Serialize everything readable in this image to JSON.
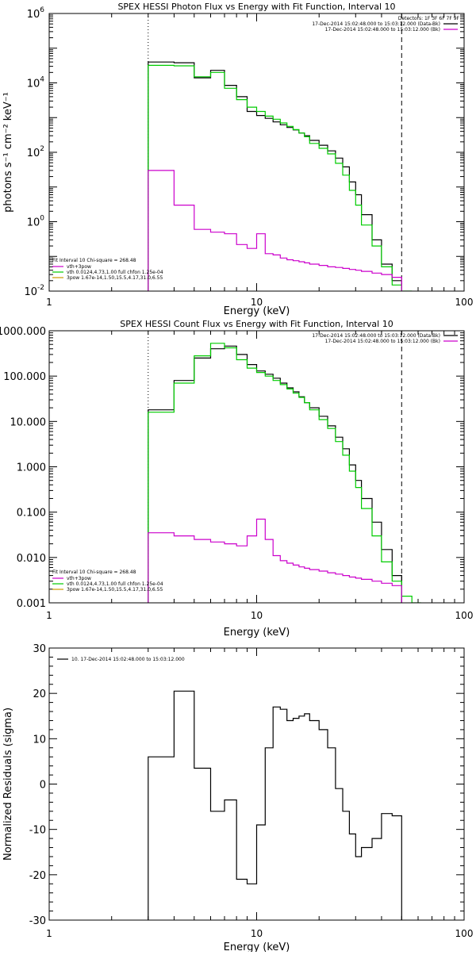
{
  "chart_data": [
    {
      "type": "line",
      "title": "SPEX HESSI Photon Flux vs Energy with Fit Function, Interval 10",
      "xlabel": "Energy (keV)",
      "ylabel": "photons s⁻¹ cm⁻² keV⁻¹",
      "xscale": "log",
      "yscale": "log",
      "xlim": [
        1,
        100
      ],
      "ylim": [
        0.01,
        1000000
      ],
      "x_ticks": [
        {
          "value": 1,
          "label": "1"
        },
        {
          "value": 10,
          "label": "10"
        },
        {
          "value": 100,
          "label": "100"
        }
      ],
      "y_ticks": [
        {
          "value": 0.01,
          "base": "10",
          "exp": "-2"
        },
        {
          "value": 1,
          "base": "10",
          "exp": "0"
        },
        {
          "value": 100,
          "base": "10",
          "exp": "2"
        },
        {
          "value": 10000,
          "base": "10",
          "exp": "4"
        },
        {
          "value": 1000000,
          "base": "10",
          "exp": "6"
        }
      ],
      "vlines": [
        {
          "x": 3,
          "style": "dotted"
        },
        {
          "x": 50,
          "style": "dashed"
        }
      ],
      "legend_top_right": {
        "header": "Detectors: 1F 3F 6F 7F 9F",
        "items": [
          {
            "label": "17-Dec-2014 15:02:48.000 to 15:03:12.000 (Data-Bk)",
            "color": "#000000"
          },
          {
            "label": "17-Dec-2014 15:02:48.000 to 15:03:12.000 (Bk)",
            "color": "#cc00cc"
          }
        ]
      },
      "legend_bottom_left": {
        "header": "Fit Interval 10   Chi-square = 268.48",
        "items": [
          {
            "label": "vth+3pow",
            "color": "#cc00cc"
          },
          {
            "label": "vth 0.0124,4.73,1.00  full chfon 1.25e-04",
            "color": "#00cc00"
          },
          {
            "label": "3pow 1.67e-14,1.50,15.5,4.17,31.0,6.55",
            "color": "#cc9900"
          }
        ]
      },
      "series": [
        {
          "color": "#000000",
          "edges": [
            3,
            4,
            5,
            6,
            7,
            8,
            9,
            10,
            11,
            12,
            13,
            14,
            15,
            16,
            17,
            18,
            20,
            22,
            24,
            26,
            28,
            30,
            32,
            36,
            40,
            45,
            50
          ],
          "values": [
            40000,
            38000,
            14000,
            23000,
            8500,
            4000,
            1500,
            1150,
            950,
            750,
            620,
            520,
            440,
            360,
            300,
            220,
            160,
            110,
            68,
            38,
            14,
            6,
            1.6,
            0.3,
            0.06,
            0.02
          ]
        },
        {
          "color": "#00cc00",
          "edges": [
            3,
            4,
            5,
            6,
            7,
            8,
            9,
            10,
            11,
            12,
            13,
            14,
            15,
            16,
            17,
            18,
            20,
            22,
            24,
            26,
            28,
            30,
            32,
            36,
            40,
            45,
            50,
            56
          ],
          "values": [
            32000,
            31000,
            15000,
            20000,
            7000,
            3300,
            2000,
            1500,
            1100,
            900,
            700,
            560,
            450,
            360,
            280,
            180,
            130,
            90,
            48,
            22,
            8,
            3,
            0.8,
            0.2,
            0.05,
            0.015,
            0.006
          ]
        },
        {
          "color": "#cc00cc",
          "edges": [
            3,
            4,
            5,
            6,
            7,
            8,
            9,
            10,
            11,
            12,
            13,
            14,
            15,
            16,
            17,
            18,
            20,
            22,
            24,
            26,
            28,
            30,
            32,
            36,
            40,
            45,
            50
          ],
          "values": [
            30,
            3,
            0.6,
            0.5,
            0.45,
            0.22,
            0.17,
            0.45,
            0.12,
            0.11,
            0.09,
            0.08,
            0.075,
            0.07,
            0.065,
            0.06,
            0.055,
            0.05,
            0.048,
            0.045,
            0.042,
            0.04,
            0.037,
            0.033,
            0.03,
            0.025
          ]
        }
      ]
    },
    {
      "type": "line",
      "title": "SPEX HESSI Count Flux vs Energy with Fit Function, Interval 10",
      "xlabel": "Energy (keV)",
      "ylabel": "",
      "xscale": "log",
      "yscale": "log",
      "xlim": [
        1,
        100
      ],
      "ylim": [
        0.001,
        1000
      ],
      "x_ticks": [
        {
          "value": 1,
          "label": "1"
        },
        {
          "value": 10,
          "label": "10"
        },
        {
          "value": 100,
          "label": "100"
        }
      ],
      "y_ticks": [
        {
          "value": 0.001,
          "label": "0.001"
        },
        {
          "value": 0.01,
          "label": "0.010"
        },
        {
          "value": 0.1,
          "label": "0.100"
        },
        {
          "value": 1,
          "label": "1.000"
        },
        {
          "value": 10,
          "label": "10.000"
        },
        {
          "value": 100,
          "label": "100.000"
        },
        {
          "value": 1000,
          "label": "1000.000"
        }
      ],
      "vlines": [
        {
          "x": 3,
          "style": "dotted"
        },
        {
          "x": 50,
          "style": "dashed"
        }
      ],
      "legend_top_right": {
        "header": "",
        "items": [
          {
            "label": "17-Dec-2014 15:02:48.000 to 15:03:12.000 (Data-Bk)",
            "color": "#000000"
          },
          {
            "label": "17-Dec-2014 15:02:48.000 to 15:03:12.000 (Bk)",
            "color": "#cc00cc"
          }
        ]
      },
      "legend_bottom_left": {
        "header": "Fit Interval 10   Chi-square = 268.48",
        "items": [
          {
            "label": "vth+3pow",
            "color": "#cc00cc"
          },
          {
            "label": "vth 0.0124,4.73,1.00  full chfon 1.25e-04",
            "color": "#00cc00"
          },
          {
            "label": "3pow 1.67e-14,1.50,15.5,4.17,31.0,6.55",
            "color": "#cc9900"
          }
        ]
      },
      "series": [
        {
          "color": "#000000",
          "edges": [
            3,
            4,
            5,
            6,
            7,
            8,
            9,
            10,
            11,
            12,
            13,
            14,
            15,
            16,
            17,
            18,
            20,
            22,
            24,
            26,
            28,
            30,
            32,
            36,
            40,
            45,
            50
          ],
          "values": [
            18,
            80,
            250,
            400,
            460,
            300,
            180,
            130,
            110,
            90,
            70,
            55,
            45,
            35,
            26,
            20,
            13,
            8,
            4.5,
            2.5,
            1.1,
            0.5,
            0.2,
            0.06,
            0.015,
            0.004
          ]
        },
        {
          "color": "#00cc00",
          "edges": [
            3,
            4,
            5,
            6,
            7,
            8,
            9,
            10,
            11,
            12,
            13,
            14,
            15,
            16,
            17,
            18,
            20,
            22,
            24,
            26,
            28,
            30,
            32,
            36,
            40,
            45,
            50,
            56,
            62
          ],
          "values": [
            16,
            70,
            280,
            530,
            420,
            230,
            150,
            120,
            100,
            80,
            65,
            52,
            42,
            34,
            26,
            18,
            11,
            7,
            3.6,
            1.8,
            0.8,
            0.35,
            0.12,
            0.03,
            0.008,
            0.003,
            0.0014,
            0.0008
          ]
        },
        {
          "color": "#cc00cc",
          "edges": [
            3,
            4,
            5,
            6,
            7,
            8,
            9,
            10,
            11,
            12,
            13,
            14,
            15,
            16,
            17,
            18,
            20,
            22,
            24,
            26,
            28,
            30,
            32,
            36,
            40,
            45,
            50
          ],
          "values": [
            0.035,
            0.03,
            0.025,
            0.022,
            0.02,
            0.018,
            0.03,
            0.07,
            0.025,
            0.011,
            0.0085,
            0.0075,
            0.0068,
            0.0062,
            0.0058,
            0.0054,
            0.005,
            0.0046,
            0.0043,
            0.004,
            0.0037,
            0.0035,
            0.0033,
            0.003,
            0.0027,
            0.0024
          ]
        }
      ]
    },
    {
      "type": "line",
      "title": "",
      "xlabel": "Energy (keV)",
      "ylabel": "Normalized Residuals (sigma)",
      "xscale": "log",
      "yscale": "linear",
      "xlim": [
        1,
        100
      ],
      "ylim": [
        -30,
        30
      ],
      "x_ticks": [
        {
          "value": 1,
          "label": "1"
        },
        {
          "value": 10,
          "label": "10"
        },
        {
          "value": 100,
          "label": "100"
        }
      ],
      "y_ticks": [
        {
          "value": -30,
          "label": "-30"
        },
        {
          "value": -20,
          "label": "-20"
        },
        {
          "value": -10,
          "label": "-10"
        },
        {
          "value": 0,
          "label": "0"
        },
        {
          "value": 10,
          "label": "10"
        },
        {
          "value": 20,
          "label": "20"
        },
        {
          "value": 30,
          "label": "30"
        }
      ],
      "vlines": [],
      "legend_top_left": {
        "items": [
          {
            "label": "10. 17-Dec-2014 15:02:48.000 to 15:03:12.000",
            "color": "#000000"
          }
        ]
      },
      "series": [
        {
          "color": "#000000",
          "edges": [
            3,
            4,
            5,
            6,
            7,
            8,
            9,
            10,
            11,
            12,
            13,
            14,
            15,
            16,
            17,
            18,
            20,
            22,
            24,
            26,
            28,
            30,
            32,
            36,
            40,
            45,
            50
          ],
          "values": [
            6,
            20.5,
            3.5,
            -6,
            -3.5,
            -21,
            -22,
            -9,
            8,
            17,
            16.5,
            14,
            14.5,
            15,
            15.5,
            14,
            12,
            8,
            -1,
            -6,
            -11,
            -16,
            -14,
            -12,
            -6.5,
            -7
          ]
        }
      ]
    }
  ]
}
